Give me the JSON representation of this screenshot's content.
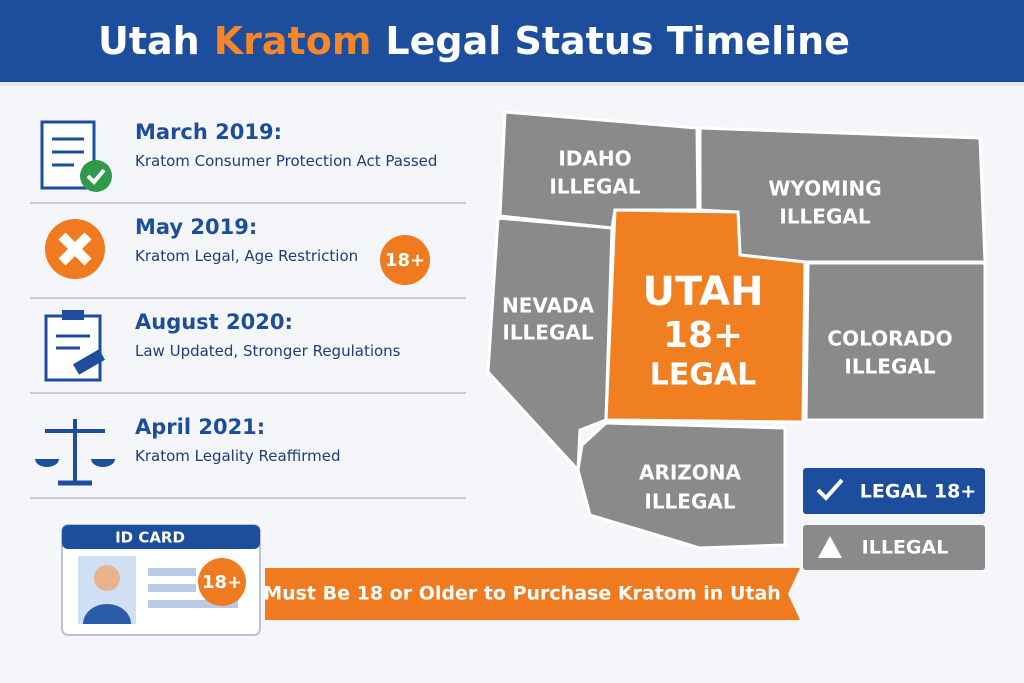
{
  "header": {
    "title_parts": [
      "Utah",
      "Kratom",
      "Legal Status Timeline"
    ]
  },
  "timeline": [
    {
      "date": "March 2019:",
      "text": "Kratom Consumer Protection Act Passed"
    },
    {
      "date": "May 2019:",
      "text": "Kratom Legal, Age Restriction",
      "badge": "18+"
    },
    {
      "date": "August 2020:",
      "text": "Law Updated, Stronger Regulations"
    },
    {
      "date": "April 2021:",
      "text": "Kratom Legality Reaffirmed"
    }
  ],
  "map": {
    "states": [
      {
        "name": "IDAHO",
        "status": "ILLEGAL"
      },
      {
        "name": "WYOMING",
        "status": "ILLEGAL"
      },
      {
        "name": "NEVADA",
        "status": "ILLEGAL"
      },
      {
        "name": "UTAH",
        "age": "18+",
        "status": "LEGAL"
      },
      {
        "name": "COLORADO",
        "status": "ILLEGAL"
      },
      {
        "name": "ARIZONA",
        "status": "ILLEGAL"
      }
    ],
    "legend": [
      "LEGAL 18+",
      "ILLEGAL"
    ]
  },
  "id_card": {
    "label": "ID CARD",
    "badge": "18+"
  },
  "banner": "Must Be 18 or Older to Purchase Kratom in Utah"
}
